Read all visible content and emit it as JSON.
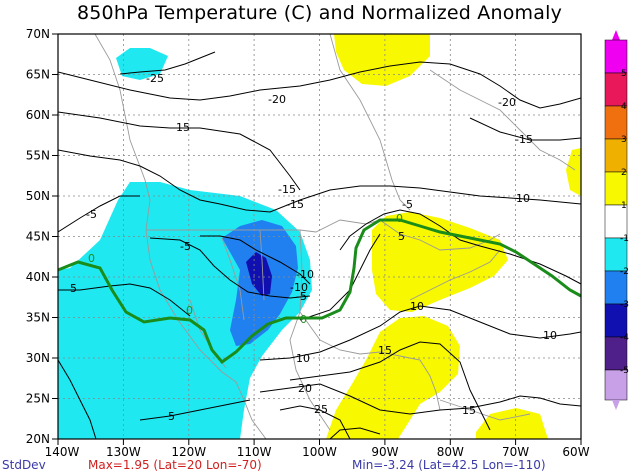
{
  "title": "850hPa Temperature (C) and Normalized Anomaly",
  "lat_labels": [
    "70N",
    "65N",
    "60N",
    "55N",
    "50N",
    "45N",
    "40N",
    "35N",
    "30N",
    "25N",
    "20N"
  ],
  "lon_labels": [
    "140W",
    "130W",
    "120W",
    "110W",
    "100W",
    "90W",
    "80W",
    "70W",
    "60W"
  ],
  "colorbar": {
    "labels": [
      "5",
      "4",
      "3",
      "2",
      "1",
      "-1",
      "-2",
      "-3",
      "-4",
      "-5"
    ],
    "colors": [
      "#f000f0",
      "#e8185a",
      "#f07010",
      "#f0b000",
      "#f8f800",
      "#ffffff",
      "#20e8f0",
      "#2080f0",
      "#1010b0",
      "#50208a",
      "#c8a0e8"
    ]
  },
  "contours": {
    "temperature_labels": [
      "-25",
      "-20",
      "-20",
      "-15",
      "-15",
      "-15",
      "-15",
      "-10",
      "-10",
      "-5",
      "-5",
      "-5",
      "-5",
      "0",
      "0",
      "0",
      "0",
      "5",
      "5",
      "5",
      "10",
      "10",
      "10",
      "10",
      "15",
      "15",
      "20",
      "25"
    ],
    "line_color": "#000000",
    "zero_line_color": "#1a8c1a",
    "zero_labels": [
      "0",
      "0",
      "0",
      "0"
    ]
  },
  "anomaly_colors": {
    "positive_1": "#f8f800",
    "negative_1": "#20e8f0",
    "negative_2": "#2080f0",
    "negative_3": "#1010b0"
  },
  "footer": {
    "stddev": "StdDev",
    "max": "Max=1.95 (Lat=20 Lon=-70)",
    "min": "Min=-3.24 (Lat=42.5 Lon=-110)"
  }
}
